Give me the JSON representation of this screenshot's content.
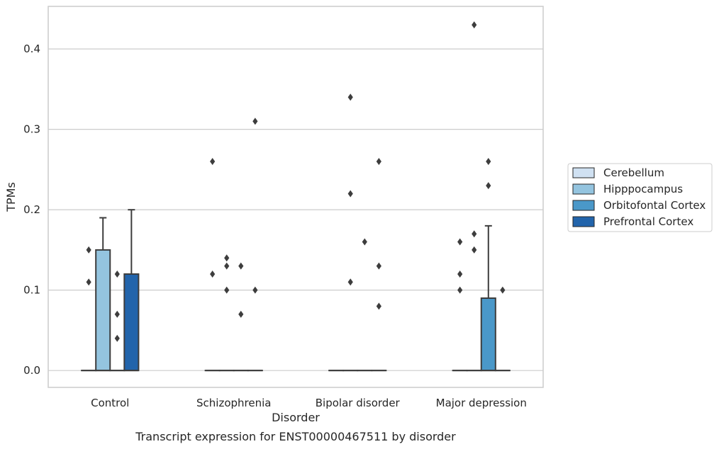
{
  "caption": "Transcript expression for ENST00000467511 by disorder",
  "chart_data": {
    "type": "box",
    "xlabel": "Disorder",
    "ylabel": "TPMs",
    "categories": [
      "Control",
      "Schizophrenia",
      "Bipolar disorder",
      "Major depression"
    ],
    "ylim": [
      -0.021,
      0.453
    ],
    "yticks": [
      0.0,
      0.1,
      0.2,
      0.3,
      0.4
    ],
    "ytick_labels": [
      "0.0",
      "0.1",
      "0.2",
      "0.3",
      "0.4"
    ],
    "grid": true,
    "legend_position": "right",
    "series": [
      {
        "name": "Cerebellum",
        "color": "#d0e1f2",
        "boxes": [
          {
            "q1": 0,
            "median": 0,
            "q3": 0,
            "whisker_low": 0,
            "whisker_high": 0,
            "outliers": [
              0.15,
              0.11
            ]
          },
          {
            "q1": 0,
            "median": 0,
            "q3": 0,
            "whisker_low": 0,
            "whisker_high": 0,
            "outliers": [
              0.26,
              0.12
            ]
          },
          {
            "q1": 0,
            "median": 0,
            "q3": 0,
            "whisker_low": 0,
            "whisker_high": 0,
            "outliers": []
          },
          {
            "q1": 0,
            "median": 0,
            "q3": 0,
            "whisker_low": 0,
            "whisker_high": 0,
            "outliers": [
              0.16,
              0.12,
              0.1
            ]
          }
        ]
      },
      {
        "name": "Hipppocampus",
        "color": "#94c4df",
        "boxes": [
          {
            "q1": 0,
            "median": 0,
            "q3": 0.15,
            "whisker_low": 0,
            "whisker_high": 0.19,
            "outliers": []
          },
          {
            "q1": 0,
            "median": 0,
            "q3": 0,
            "whisker_low": 0,
            "whisker_high": 0,
            "outliers": [
              0.14,
              0.13,
              0.1
            ]
          },
          {
            "q1": 0,
            "median": 0,
            "q3": 0,
            "whisker_low": 0,
            "whisker_high": 0,
            "outliers": [
              0.34,
              0.22,
              0.11
            ]
          },
          {
            "q1": 0,
            "median": 0,
            "q3": 0,
            "whisker_low": 0,
            "whisker_high": 0,
            "outliers": [
              0.43,
              0.17,
              0.15
            ]
          }
        ]
      },
      {
        "name": "Orbitofontal Cortex",
        "color": "#4a98c9",
        "boxes": [
          {
            "q1": 0,
            "median": 0,
            "q3": 0,
            "whisker_low": 0,
            "whisker_high": 0,
            "outliers": [
              0.12,
              0.07,
              0.04
            ]
          },
          {
            "q1": 0,
            "median": 0,
            "q3": 0,
            "whisker_low": 0,
            "whisker_high": 0,
            "outliers": [
              0.13,
              0.07
            ]
          },
          {
            "q1": 0,
            "median": 0,
            "q3": 0,
            "whisker_low": 0,
            "whisker_high": 0,
            "outliers": [
              0.16
            ]
          },
          {
            "q1": 0,
            "median": 0,
            "q3": 0.09,
            "whisker_low": 0,
            "whisker_high": 0.18,
            "outliers": [
              0.26,
              0.23
            ]
          }
        ]
      },
      {
        "name": "Prefrontal Cortex",
        "color": "#2264ab",
        "boxes": [
          {
            "q1": 0,
            "median": 0,
            "q3": 0.12,
            "whisker_low": 0,
            "whisker_high": 0.2,
            "outliers": []
          },
          {
            "q1": 0,
            "median": 0,
            "q3": 0,
            "whisker_low": 0,
            "whisker_high": 0,
            "outliers": [
              0.31,
              0.1
            ]
          },
          {
            "q1": 0,
            "median": 0,
            "q3": 0,
            "whisker_low": 0,
            "whisker_high": 0,
            "outliers": [
              0.26,
              0.13,
              0.08
            ]
          },
          {
            "q1": 0,
            "median": 0,
            "q3": 0,
            "whisker_low": 0,
            "whisker_high": 0,
            "outliers": [
              0.1
            ]
          }
        ]
      }
    ]
  }
}
